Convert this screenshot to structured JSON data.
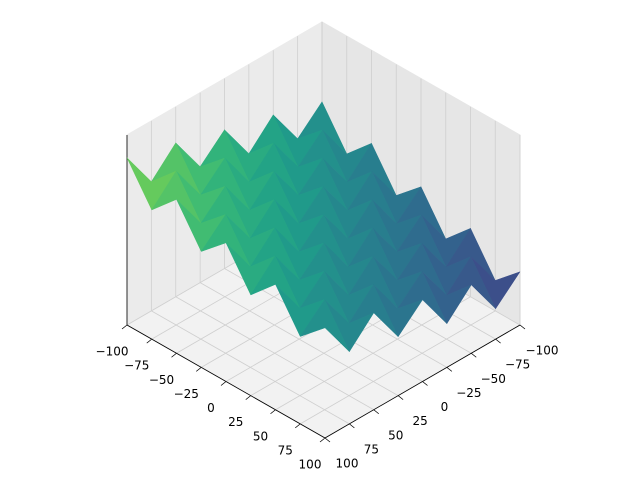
{
  "chart_data": {
    "type": "surface",
    "colormap": "viridis",
    "grid": true,
    "x": [
      -100,
      -75,
      -50,
      -25,
      0,
      25,
      50,
      75,
      100
    ],
    "y": [
      -100,
      -75,
      -50,
      -25,
      0,
      25,
      50,
      75,
      100
    ],
    "z": [
      [
        0.58,
        0.38,
        0.51,
        0.31,
        0.43,
        0.23,
        0.36,
        0.16,
        0.28
      ],
      [
        0.46,
        0.58,
        0.38,
        0.51,
        0.31,
        0.43,
        0.23,
        0.36,
        0.16
      ],
      [
        0.66,
        0.46,
        0.58,
        0.38,
        0.51,
        0.31,
        0.43,
        0.23,
        0.36
      ],
      [
        0.53,
        0.66,
        0.46,
        0.58,
        0.38,
        0.51,
        0.31,
        0.43,
        0.23
      ],
      [
        0.73,
        0.53,
        0.66,
        0.46,
        0.58,
        0.38,
        0.51,
        0.31,
        0.43
      ],
      [
        0.61,
        0.73,
        0.53,
        0.66,
        0.46,
        0.58,
        0.38,
        0.51,
        0.31
      ],
      [
        0.81,
        0.61,
        0.73,
        0.53,
        0.66,
        0.46,
        0.58,
        0.38,
        0.51
      ],
      [
        0.68,
        0.81,
        0.61,
        0.73,
        0.53,
        0.66,
        0.46,
        0.58,
        0.38
      ],
      [
        0.88,
        0.68,
        0.81,
        0.61,
        0.73,
        0.53,
        0.66,
        0.46,
        0.58
      ]
    ],
    "xlim": [
      -100,
      100
    ],
    "ylim": [
      -100,
      100
    ],
    "zlim": [
      0,
      1
    ],
    "xticks": [
      {
        "value": -100,
        "label": "−100"
      },
      {
        "value": -75,
        "label": "−75"
      },
      {
        "value": -50,
        "label": "−50"
      },
      {
        "value": -25,
        "label": "−25"
      },
      0,
      25,
      50,
      75,
      100
    ],
    "yticks": [
      {
        "value": -100,
        "label": "−100"
      },
      {
        "value": -75,
        "label": "−75"
      },
      {
        "value": -50,
        "label": "−50"
      },
      {
        "value": -25,
        "label": "−25"
      },
      0,
      25,
      50,
      75,
      100
    ]
  }
}
